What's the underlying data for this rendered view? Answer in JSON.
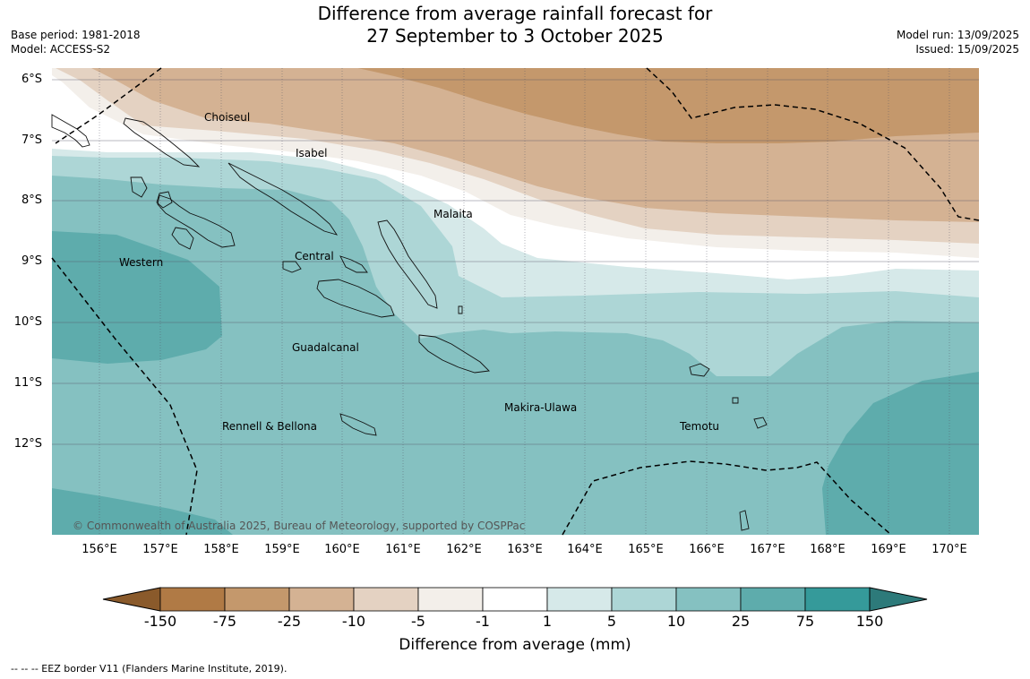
{
  "header": {
    "title_line1": "Difference from average rainfall forecast for",
    "title_line2": "27 September to 3 October 2025",
    "base_period": "Base period: 1981-2018",
    "model": "Model: ACCESS-S2",
    "model_run": "Model run: 13/09/2025",
    "issued": "Issued: 15/09/2025"
  },
  "map": {
    "lat_labels": [
      "6°S",
      "7°S",
      "8°S",
      "9°S",
      "10°S",
      "11°S",
      "12°S"
    ],
    "lon_labels": [
      "156°E",
      "157°E",
      "158°E",
      "159°E",
      "160°E",
      "161°E",
      "162°E",
      "163°E",
      "164°E",
      "165°E",
      "166°E",
      "167°E",
      "168°E",
      "169°E",
      "170°E"
    ],
    "regions": [
      {
        "name": "Choiseul"
      },
      {
        "name": "Isabel"
      },
      {
        "name": "Malaita"
      },
      {
        "name": "Western"
      },
      {
        "name": "Central"
      },
      {
        "name": "Guadalcanal"
      },
      {
        "name": "Makira-Ulawa"
      },
      {
        "name": "Rennell & Bellona"
      },
      {
        "name": "Temotu"
      }
    ],
    "copyright": "© Commonwealth of Australia 2025, Bureau of Meteorology, supported by COSPPac"
  },
  "colorbar": {
    "ticks": [
      "-150",
      "-75",
      "-25",
      "-10",
      "-5",
      "-1",
      "1",
      "5",
      "10",
      "25",
      "75",
      "150"
    ],
    "colors": [
      "#8a5a2b",
      "#b07a45",
      "#c4986c",
      "#d4b293",
      "#e4d2c2",
      "#f3efea",
      "#ffffff",
      "#d6e9e9",
      "#add6d6",
      "#85c1c1",
      "#5eacac",
      "#359a9a",
      "#2d7a7a"
    ],
    "title": "Difference from average (mm)"
  },
  "footer": {
    "eez_note": "--  --  -- EEZ border V11 (Flanders Marine Institute, 2019)."
  }
}
